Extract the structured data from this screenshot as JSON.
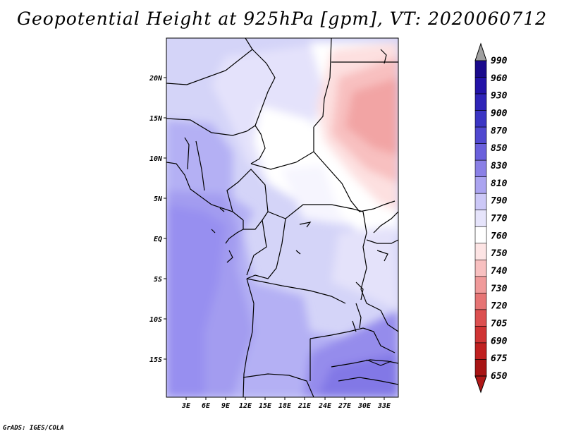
{
  "title": "Geopotential Height at 925hPa [gpm], VT: 2020060712",
  "credit": "GrADS: IGES/COLA",
  "map": {
    "lat_ticks": [
      "20N",
      "15N",
      "10N",
      "5N",
      "EQ",
      "5S",
      "10S",
      "15S"
    ],
    "lon_ticks": [
      "3E",
      "6E",
      "9E",
      "12E",
      "15E",
      "18E",
      "21E",
      "24E",
      "27E",
      "30E",
      "33E"
    ],
    "lat_range": [
      -20,
      24
    ],
    "lon_range": [
      0,
      35
    ],
    "variable": "Geopotential Height",
    "level": "925hPa",
    "units": "gpm",
    "valid_time": "2020060712"
  },
  "colorbar": {
    "levels": [
      "990",
      "960",
      "930",
      "900",
      "870",
      "850",
      "830",
      "810",
      "790",
      "770",
      "760",
      "750",
      "740",
      "730",
      "720",
      "705",
      "690",
      "675",
      "650"
    ],
    "colors": [
      "#1a0a8c",
      "#2313a8",
      "#2f24b8",
      "#3b35c4",
      "#5048d0",
      "#6a60dc",
      "#8a80e6",
      "#aba4f0",
      "#ccc8f7",
      "#e6e4fb",
      "#ffffff",
      "#fde4e4",
      "#f8c0c0",
      "#f09a9a",
      "#e67474",
      "#dc5050",
      "#d03434",
      "#c02020",
      "#a81414"
    ],
    "top_arrow_color": "#a0a0a0",
    "bottom_arrow_color": "#b01818"
  }
}
